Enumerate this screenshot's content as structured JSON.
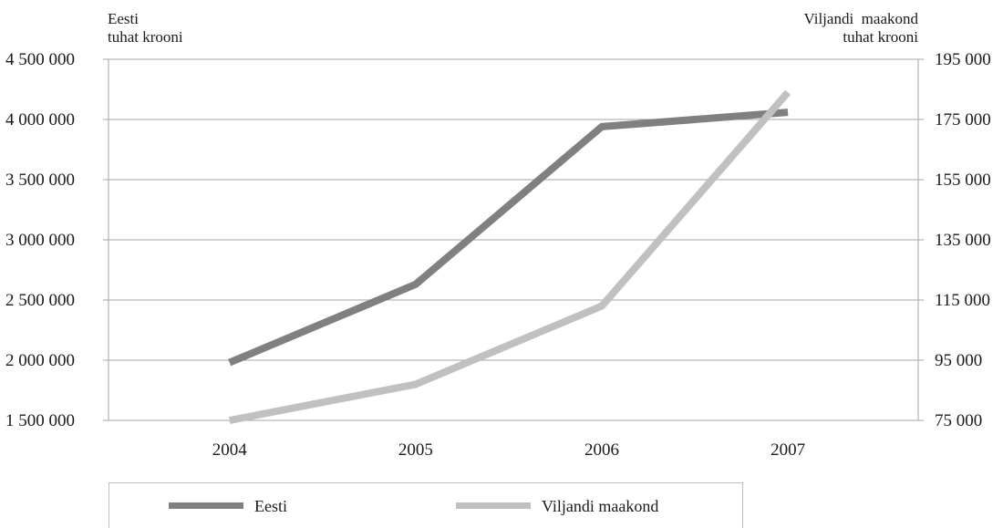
{
  "chart_data": {
    "type": "line",
    "dual_axis": true,
    "categories": [
      "2004",
      "2005",
      "2006",
      "2007"
    ],
    "left_axis": {
      "title_lines": [
        "Eesti",
        "tuhat krooni"
      ],
      "ylim": [
        1500000,
        4500000
      ],
      "tick_labels": [
        "1 500 000",
        "2 000 000",
        "2 500 000",
        "3 000 000",
        "3 500 000",
        "4 000 000",
        "4 500 000"
      ]
    },
    "right_axis": {
      "title_lines": [
        "Viljandi  maakond",
        "tuhat krooni"
      ],
      "ylim": [
        75000,
        195000
      ],
      "tick_labels": [
        "75 000",
        "95 000",
        "115 000",
        "135 000",
        "155 000",
        "175 000",
        "195 000"
      ]
    },
    "series": [
      {
        "name": "Eesti",
        "axis": "left",
        "color": "#808080",
        "values": [
          1980000,
          2630000,
          3940000,
          4060000
        ]
      },
      {
        "name": "Viljandi maakond",
        "axis": "right",
        "color": "#c0c0c0",
        "values": [
          75000,
          87000,
          113000,
          184000
        ]
      }
    ],
    "grid": true,
    "legend_position": "bottom"
  }
}
